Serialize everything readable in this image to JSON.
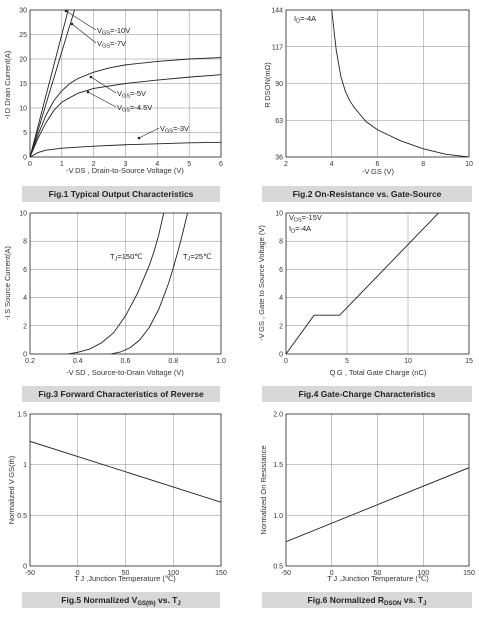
{
  "chart_data": [
    {
      "id": "fig1",
      "type": "line",
      "caption": "Fig.1 Typical Output Characteristics",
      "xlabel": "-V DS , Drain-to-Source Voltage (V)",
      "ylabel": "-I D Drain Current(A)",
      "xlim": [
        0,
        6
      ],
      "ylim": [
        0,
        30
      ],
      "xticks": [
        "0",
        "1",
        "2",
        "3",
        "4",
        "5",
        "6"
      ],
      "yticks": [
        "0",
        "5",
        "10",
        "15",
        "20",
        "25",
        "30"
      ],
      "grid": true,
      "series": [
        {
          "name": "VGS=-10V",
          "x": [
            0,
            0.2,
            0.4,
            0.6,
            0.8,
            1.0,
            1.2,
            1.4
          ],
          "y": [
            0,
            5,
            10,
            15,
            20,
            25,
            30,
            33
          ]
        },
        {
          "name": "VGS=-7V",
          "x": [
            0,
            0.2,
            0.4,
            0.6,
            0.8,
            1.0,
            1.2,
            1.4,
            1.6
          ],
          "y": [
            0,
            4.3,
            8.6,
            12.9,
            17.2,
            21.5,
            25.8,
            30,
            32
          ]
        },
        {
          "name": "VGS=-5V",
          "x": [
            0,
            0.25,
            0.5,
            0.75,
            1.0,
            1.25,
            1.5,
            2,
            2.5,
            3,
            4,
            5,
            6
          ],
          "y": [
            0,
            4.5,
            8.5,
            11.5,
            13.5,
            15,
            16,
            17.3,
            18.2,
            18.8,
            19.5,
            20,
            20.3
          ]
        },
        {
          "name": "VGS=-4.5V",
          "x": [
            0,
            0.25,
            0.5,
            0.75,
            1.0,
            1.5,
            2,
            3,
            4,
            5,
            6
          ],
          "y": [
            0,
            3.8,
            7,
            9.5,
            11.2,
            13,
            14,
            15,
            15.7,
            16.3,
            16.8
          ]
        },
        {
          "name": "VGS=-3V",
          "x": [
            0,
            0.25,
            0.5,
            1,
            2,
            3,
            4,
            5,
            6
          ],
          "y": [
            0,
            0.9,
            1.4,
            1.8,
            2.2,
            2.5,
            2.7,
            2.9,
            3
          ]
        }
      ],
      "annotations": [
        {
          "label": "V",
          "sub": "GS",
          "rest": "=-10V"
        },
        {
          "label": "V",
          "sub": "GS",
          "rest": "=-7V"
        },
        {
          "label": "V",
          "sub": "GS",
          "rest": "=-5V"
        },
        {
          "label": "V",
          "sub": "GS",
          "rest": "=-4.5V"
        },
        {
          "label": "V",
          "sub": "GS",
          "rest": "=-3V"
        }
      ]
    },
    {
      "id": "fig2",
      "type": "line",
      "caption": "Fig.2 On-Resistance vs. Gate-Source",
      "xlabel": "-V GS (V)",
      "ylabel": "R DSON(mΩ)",
      "xlim": [
        2,
        10
      ],
      "ylim": [
        36,
        144
      ],
      "xticks": [
        "2",
        "4",
        "6",
        "8",
        "10"
      ],
      "yticks": [
        "36",
        "63",
        "90",
        "117",
        "144"
      ],
      "grid": true,
      "series": [
        {
          "name": "",
          "x": [
            4.0,
            4.05,
            4.2,
            4.4,
            4.6,
            4.8,
            5.0,
            5.5,
            6,
            6.5,
            7,
            8,
            9,
            10
          ],
          "y": [
            144,
            136,
            114,
            95,
            84,
            77,
            72,
            62,
            56,
            52,
            48,
            42,
            38,
            36
          ]
        }
      ],
      "annotations": [
        {
          "label": "I",
          "sub": "D",
          "rest": "=-4A"
        }
      ]
    },
    {
      "id": "fig3",
      "type": "line",
      "caption": "Fig.3 Forward Characteristics of Reverse",
      "xlabel": "-V SD , Source-to-Drain Voltage (V)",
      "ylabel": "-I S Source Current(A)",
      "xlim": [
        0.2,
        1.0
      ],
      "ylim": [
        0,
        10
      ],
      "xticks": [
        "0.2",
        "0.4",
        "0.6",
        "0.8",
        "1.0"
      ],
      "yticks": [
        "0",
        "2",
        "4",
        "6",
        "8",
        "10"
      ],
      "grid": true,
      "series": [
        {
          "name": "TJ=150℃",
          "x": [
            0.36,
            0.4,
            0.45,
            0.5,
            0.55,
            0.6,
            0.65,
            0.7,
            0.72,
            0.74,
            0.76
          ],
          "y": [
            0,
            0.12,
            0.35,
            0.8,
            1.5,
            2.7,
            4.3,
            6.3,
            7.3,
            8.5,
            10
          ]
        },
        {
          "name": "TJ=25℃",
          "x": [
            0.54,
            0.58,
            0.62,
            0.66,
            0.7,
            0.74,
            0.78,
            0.8,
            0.82,
            0.84,
            0.86
          ],
          "y": [
            0,
            0.15,
            0.45,
            1.0,
            1.9,
            3.2,
            5.0,
            6.1,
            7.3,
            8.6,
            10
          ]
        }
      ],
      "annotations": [
        {
          "label": "T",
          "sub": "J",
          "rest": "=150℃"
        },
        {
          "label": "T",
          "sub": "J",
          "rest": "=25℃"
        }
      ]
    },
    {
      "id": "fig4",
      "type": "line",
      "caption": "Fig.4 Gate-Charge Characteristics",
      "xlabel": "Q G , Total Gate Charge (nC)",
      "ylabel": "-V GS , Gate to Source Voltage (V)",
      "xlim": [
        0,
        15
      ],
      "ylim": [
        0,
        10
      ],
      "xticks": [
        "0",
        "5",
        "10",
        "15"
      ],
      "yticks": [
        "0",
        "2",
        "4",
        "6",
        "8",
        "10"
      ],
      "grid": true,
      "series": [
        {
          "name": "",
          "x": [
            0,
            2.3,
            4.4,
            12.5
          ],
          "y": [
            0,
            2.75,
            2.75,
            10
          ]
        }
      ],
      "annotations": [
        {
          "label": "V",
          "sub": "DS",
          "rest": "=-15V"
        },
        {
          "label": "I",
          "sub": "D",
          "rest": "=-4A"
        }
      ]
    },
    {
      "id": "fig5",
      "type": "line",
      "caption": "Fig.5 Normalized V",
      "caption_sub": "GS(th)",
      "caption_rest": " vs. T",
      "caption_sub2": "J",
      "xlabel": "T J ,Junction Temperature (℃)",
      "ylabel": "Normalized V GS(th)",
      "xlim": [
        -50,
        150
      ],
      "ylim": [
        0,
        1.5
      ],
      "xticks": [
        "-50",
        "0",
        "50",
        "100",
        "150"
      ],
      "yticks": [
        "0",
        "0.5",
        "1",
        "1.5"
      ],
      "grid": true,
      "series": [
        {
          "name": "",
          "x": [
            -50,
            150
          ],
          "y": [
            1.23,
            0.63
          ]
        }
      ]
    },
    {
      "id": "fig6",
      "type": "line",
      "caption": "Fig.6 Normalized R",
      "caption_sub": "DSON",
      "caption_rest": " vs. T",
      "caption_sub2": "J",
      "xlabel": "T J ,Junction Temperature (℃)",
      "ylabel": "Normalized On Resistance",
      "xlim": [
        -50,
        150
      ],
      "ylim": [
        0.5,
        2.0
      ],
      "xticks": [
        "-50",
        "0",
        "50",
        "100",
        "150"
      ],
      "yticks": [
        "0.5",
        "1.0",
        "1.5",
        "2.0"
      ],
      "grid": true,
      "series": [
        {
          "name": "",
          "x": [
            -50,
            150
          ],
          "y": [
            0.74,
            1.47
          ]
        }
      ]
    }
  ]
}
